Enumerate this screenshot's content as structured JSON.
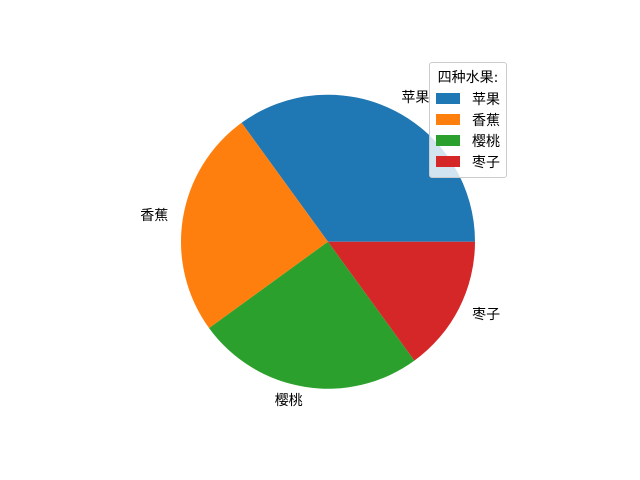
{
  "chart_data": {
    "type": "pie",
    "labels": [
      "苹果",
      "香蕉",
      "樱桃",
      "枣子"
    ],
    "values": [
      35,
      25,
      25,
      15
    ],
    "colors": [
      "#1f77b4",
      "#ff7f0e",
      "#2ca02c",
      "#d62728"
    ],
    "start_angle": 0,
    "counterclock": true,
    "label_distance": 1.1,
    "background": "#ffffff",
    "legend": {
      "title": "四种水果:",
      "position": "upper right",
      "entries": [
        "苹果",
        "香蕉",
        "樱桃",
        "枣子"
      ]
    }
  }
}
